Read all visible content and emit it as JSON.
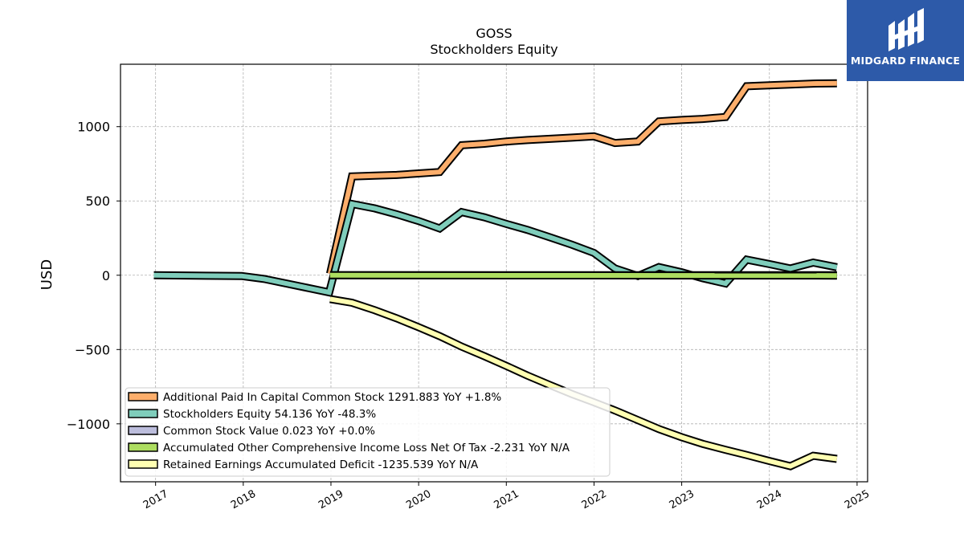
{
  "logo": {
    "brand": "MIDGARD FINANCE",
    "icon": "midgard-logo-icon",
    "background": "#2d5aa9"
  },
  "chart_data": {
    "type": "line",
    "title": "GOSS",
    "subtitle": "Stockholders  Equity",
    "xlabel": "",
    "ylabel": "USD",
    "xlim": [
      2016.6,
      2025.12
    ],
    "ylim": [
      -1390,
      1420
    ],
    "x_ticks": [
      "2017",
      "2018",
      "2019",
      "2020",
      "2021",
      "2022",
      "2023",
      "2024",
      "2025"
    ],
    "y_ticks": [
      {
        "value": 1000,
        "label": "1000"
      },
      {
        "value": 500,
        "label": "500"
      },
      {
        "value": 0,
        "label": "0"
      },
      {
        "value": -500,
        "label": "−500"
      },
      {
        "value": -1000,
        "label": "−1000"
      }
    ],
    "grid": true,
    "legend_position": "lower-left",
    "series": [
      {
        "name": "Additional Paid In Capital Common Stock  1291.883 YoY +1.8%",
        "color": "#fdae6b",
        "x": [
          2018.99,
          2019.24,
          2019.5,
          2019.75,
          2020.0,
          2020.24,
          2020.49,
          2020.75,
          2021.0,
          2021.24,
          2021.5,
          2021.75,
          2022.0,
          2022.24,
          2022.5,
          2022.74,
          2023.0,
          2023.24,
          2023.5,
          2023.74,
          2024.0,
          2024.24,
          2024.5,
          2024.77
        ],
        "y": [
          10,
          665,
          670,
          675,
          685,
          695,
          875,
          885,
          900,
          910,
          918,
          926,
          935,
          890,
          900,
          1035,
          1045,
          1052,
          1065,
          1272,
          1278,
          1284,
          1290,
          1292
        ]
      },
      {
        "name": "Stockholders Equity  54.136 YoY -48.3%",
        "color": "#7fcdbb",
        "x": [
          2016.98,
          2017.98,
          2018.24,
          2018.98,
          2019.24,
          2019.5,
          2019.75,
          2020.0,
          2020.24,
          2020.49,
          2020.75,
          2021.0,
          2021.24,
          2021.5,
          2021.75,
          2022.0,
          2022.24,
          2022.5,
          2022.74,
          2023.0,
          2023.24,
          2023.5,
          2023.74,
          2024.0,
          2024.24,
          2024.5,
          2024.77
        ],
        "y": [
          0,
          -5,
          -25,
          -115,
          480,
          450,
          410,
          365,
          315,
          425,
          390,
          345,
          305,
          255,
          205,
          150,
          45,
          -5,
          55,
          20,
          -20,
          -55,
          105,
          75,
          45,
          85,
          54
        ]
      },
      {
        "name": "Common Stock Value  0.023 YoY +0.0%",
        "color": "#bcbddc",
        "x": [
          2018.99,
          2024.77
        ],
        "y": [
          0.02,
          0.023
        ]
      },
      {
        "name": "Accumulated Other Comprehensive Income Loss Net Of Tax  -2.231 YoY N/A",
        "color": "#addd60",
        "x": [
          2018.99,
          2024.77
        ],
        "y": [
          0,
          -2.2
        ]
      },
      {
        "name": "Retained Earnings Accumulated Deficit  -1235.539 YoY N/A",
        "color": "#ffffb2",
        "x": [
          2018.99,
          2019.24,
          2019.5,
          2019.75,
          2020.0,
          2020.24,
          2020.49,
          2020.75,
          2021.0,
          2021.24,
          2021.5,
          2021.75,
          2022.0,
          2022.24,
          2022.5,
          2022.74,
          2023.0,
          2023.24,
          2023.5,
          2023.74,
          2024.0,
          2024.24,
          2024.5,
          2024.77
        ],
        "y": [
          -160,
          -185,
          -235,
          -290,
          -350,
          -410,
          -480,
          -545,
          -610,
          -675,
          -740,
          -800,
          -855,
          -910,
          -975,
          -1035,
          -1090,
          -1135,
          -1175,
          -1210,
          -1250,
          -1285,
          -1215,
          -1236
        ]
      }
    ]
  }
}
